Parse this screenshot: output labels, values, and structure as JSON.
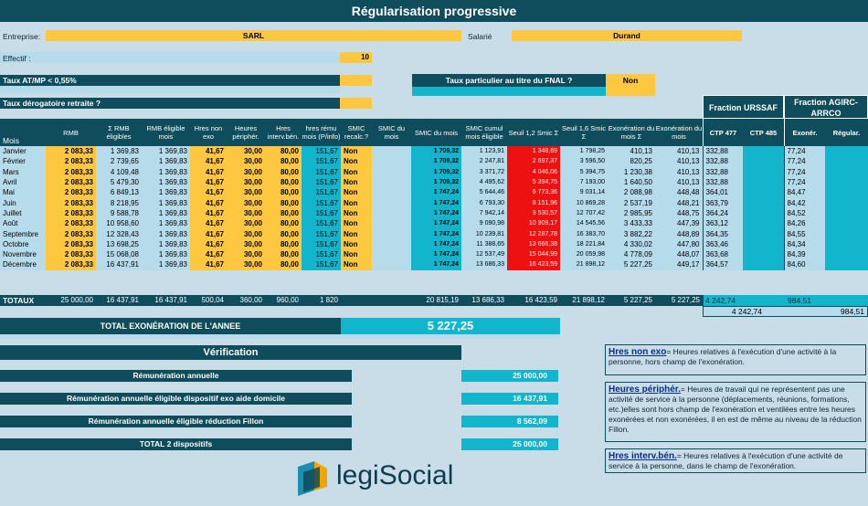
{
  "title": "Régularisation progressive",
  "entreprise": {
    "label": "Entreprise:",
    "value": "SARL"
  },
  "salarie": {
    "label": "Salarié",
    "value": "Durand"
  },
  "effectif": {
    "label": "Effectif :",
    "value": "10"
  },
  "taux_at": {
    "label": "Taux AT/MP < 0,55%",
    "value": ""
  },
  "taux_derog": {
    "label": "Taux dérogatoire retraite ?",
    "value": ""
  },
  "taux_fnal": {
    "label": "Taux particulier au titre du FNAL ?",
    "value": "Non"
  },
  "fraction_urssaf": "Fraction URSSAF",
  "fraction_agirc": "Fraction AGIRC-ARRCO",
  "headers": {
    "mois": "Mois",
    "rmb": "RMB",
    "sum_rmb": "Σ RMB éligibles",
    "rmb_elig": "RMB éligible mois",
    "hres_non_exo": "Hres non exo",
    "heures_periph": "Heures périphér.",
    "hres_interv": "Hres interv.bén.",
    "hres_remu": "hres rému mois (P/info)",
    "smic_recalc": "SMIC recalc.?",
    "smic_du_mois": "SMIC du mois",
    "smic_du_mois2": "SMIC du mois",
    "smic_cumul": "SMIC cumul mois éligible",
    "seuil12": "Seuil 1,2 Smic Σ",
    "seuil16": "Seuil 1,6 Smic Σ",
    "exo_sum": "Exonération du mois Σ",
    "exo_mois": "Exonération du mois",
    "ctp477": "CTP 477",
    "ctp485": "CTP 485",
    "exoner": "Exonér.",
    "regular": "Régular."
  },
  "rows": [
    [
      "Janvier",
      "2 083,33",
      "1 369,83",
      "1 369,83",
      "41,67",
      "30,00",
      "80,00",
      "151,67",
      "Non",
      "",
      "1 709,32",
      "1 123,91",
      "1 348,69",
      "1 798,25",
      "410,13",
      "410,13",
      "332,88",
      "",
      "77,24",
      ""
    ],
    [
      "Février",
      "2 083,33",
      "2 739,65",
      "1 369,83",
      "41,67",
      "30,00",
      "80,00",
      "151,67",
      "Non",
      "",
      "1 709,32",
      "2 247,81",
      "2 697,37",
      "3 596,50",
      "820,25",
      "410,13",
      "332,88",
      "",
      "77,24",
      ""
    ],
    [
      "Mars",
      "2 083,33",
      "4 109,48",
      "1 369,83",
      "41,67",
      "30,00",
      "80,00",
      "151,67",
      "Non",
      "",
      "1 709,32",
      "3 371,72",
      "4 046,06",
      "5 394,75",
      "1 230,38",
      "410,13",
      "332,88",
      "",
      "77,24",
      ""
    ],
    [
      "Avril",
      "2 083,33",
      "5 479,30",
      "1 369,83",
      "41,67",
      "30,00",
      "80,00",
      "151,67",
      "Non",
      "",
      "1 709,32",
      "4 495,62",
      "5 394,75",
      "7 193,00",
      "1 640,50",
      "410,13",
      "332,88",
      "",
      "77,24",
      ""
    ],
    [
      "Mai",
      "2 083,33",
      "6 849,13",
      "1 369,83",
      "41,67",
      "30,00",
      "80,00",
      "151,67",
      "Non",
      "",
      "1 747,24",
      "5 644,46",
      "6 773,36",
      "9 031,14",
      "2 088,98",
      "448,48",
      "364,01",
      "",
      "84,47",
      ""
    ],
    [
      "Juin",
      "2 083,33",
      "8 218,95",
      "1 369,83",
      "41,67",
      "30,00",
      "80,00",
      "151,67",
      "Non",
      "",
      "1 747,24",
      "6 793,30",
      "8 151,96",
      "10 869,28",
      "2 537,19",
      "448,21",
      "363,79",
      "",
      "84,42",
      ""
    ],
    [
      "Juillet",
      "2 083,33",
      "9 588,78",
      "1 369,83",
      "41,67",
      "30,00",
      "80,00",
      "151,67",
      "Non",
      "",
      "1 747,24",
      "7 942,14",
      "9 530,57",
      "12 707,42",
      "2 985,95",
      "448,75",
      "364,24",
      "",
      "84,52",
      ""
    ],
    [
      "Août",
      "2 083,33",
      "10 958,60",
      "1 369,83",
      "41,67",
      "30,00",
      "80,00",
      "151,67",
      "Non",
      "",
      "1 747,24",
      "9 090,98",
      "10 909,17",
      "14 545,56",
      "3 433,33",
      "447,39",
      "363,12",
      "",
      "84,26",
      ""
    ],
    [
      "Septembre",
      "2 083,33",
      "12 328,43",
      "1 369,83",
      "41,67",
      "30,00",
      "80,00",
      "151,67",
      "Non",
      "",
      "1 747,24",
      "10 239,81",
      "12 287,78",
      "16 383,70",
      "3 882,22",
      "448,89",
      "364,35",
      "",
      "84,55",
      ""
    ],
    [
      "Octobre",
      "2 083,33",
      "13 698,25",
      "1 369,83",
      "41,67",
      "30,00",
      "80,00",
      "151,67",
      "Non",
      "",
      "1 747,24",
      "11 388,65",
      "13 666,38",
      "18 221,84",
      "4 330,02",
      "447,80",
      "363,46",
      "",
      "84,34",
      ""
    ],
    [
      "Novembre",
      "2 083,33",
      "15 068,08",
      "1 369,83",
      "41,67",
      "30,00",
      "80,00",
      "151,67",
      "Non",
      "",
      "1 747,24",
      "12 537,49",
      "15 044,99",
      "20 059,98",
      "4 778,09",
      "448,07",
      "363,68",
      "",
      "84,39",
      ""
    ],
    [
      "Décembre",
      "2 083,33",
      "16 437,91",
      "1 369,83",
      "41,67",
      "30,00",
      "80,00",
      "151,67",
      "Non",
      "",
      "1 747,24",
      "13 686,33",
      "16 423,59",
      "21 898,12",
      "5 227,25",
      "449,17",
      "364,57",
      "",
      "84,60",
      ""
    ]
  ],
  "totaux": {
    "label": "TOTAUX",
    "rmb": "25 000,00",
    "sum_rmb": "16 437,91",
    "rmb_elig": "16 437,91",
    "hres_non_exo": "500,04",
    "heures_periph": "360,00",
    "hres_interv": "960,00",
    "hres_remu": "1 820",
    "smic_du_mois": "20 815,19",
    "smic_cumul": "13 686,33",
    "seuil12": "16 423,59",
    "seuil16": "21 898,12",
    "exo_sum": "5 227,25",
    "exo_mois": "5 227,25",
    "ctp477": "4 242,74",
    "exoner": "984,51",
    "ctp_total": "4 242,74",
    "agirc_total": "984,51"
  },
  "total_exo": {
    "label": "TOTAL EXONÉRATION DE L'ANNEE",
    "value": "5 227,25"
  },
  "verification": {
    "title": "Vérification",
    "rows": [
      {
        "label": "Rémunération annuelle",
        "value": "25 000,00"
      },
      {
        "label": "Rémunération annuelle éligible dispositif exo aide domicile",
        "value": "16 437,91"
      },
      {
        "label": "Rémunération annuelle éligible réduction Fillon",
        "value": "8 562,09"
      },
      {
        "label": "TOTAL 2 dispositifs",
        "value": "25 000,00"
      }
    ]
  },
  "notes": [
    {
      "title": "Hres non exo",
      "text": "= Heures relatives à l'exécution d'une activité à la personne, hors champ de l'exonération."
    },
    {
      "title": "Heures périphér.",
      "text": "= Heures de travail qui ne représentent pas une activité de service à la personne (déplacements, réunions, formations, etc.)elles sont  hors champ de l'exonération  et ventilées entre les heures exonérées et non exonérées, il en est de même au niveau de la réduction Fillon."
    },
    {
      "title": "Hres interv.bén.",
      "text": "= Heures relatives à l'exécution d'une activité de service à la personne, dans le champ de l'exonération."
    }
  ],
  "logo": "legiSocial"
}
